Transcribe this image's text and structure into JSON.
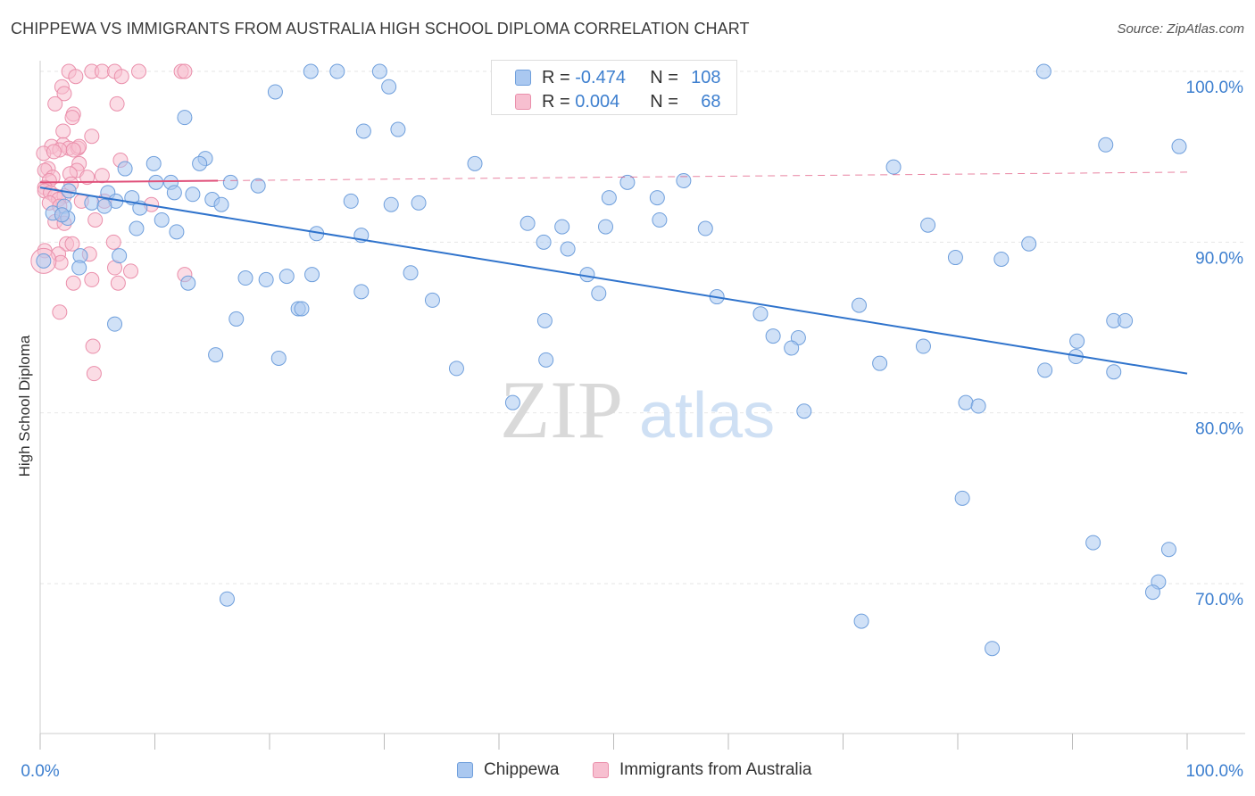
{
  "title": "CHIPPEWA VS IMMIGRANTS FROM AUSTRALIA HIGH SCHOOL DIPLOMA CORRELATION CHART",
  "source": "Source: ZipAtlas.com",
  "watermark": {
    "zip": "ZIP",
    "atlas": "atlas"
  },
  "legend": {
    "rows": [
      {
        "r_label": "R =",
        "r_value": "-0.474",
        "n_label": "N =",
        "n_value": "108"
      },
      {
        "r_label": "R =",
        "r_value": "0.004",
        "n_label": "N =",
        "n_value": "68"
      }
    ]
  },
  "chart_data": {
    "type": "scatter",
    "title": "CHIPPEWA VS IMMIGRANTS FROM AUSTRALIA HIGH SCHOOL DIPLOMA CORRELATION CHART",
    "xlabel": "",
    "ylabel": "High School Diploma",
    "xlim": [
      0,
      100
    ],
    "ylim": [
      60,
      102
    ],
    "x_tick_labels": [
      "0.0%",
      "100.0%"
    ],
    "y_ticks": [
      70,
      80,
      90,
      100
    ],
    "y_tick_labels": [
      "70.0%",
      "80.0%",
      "90.0%",
      "100.0%"
    ],
    "grid": true,
    "legend_position": "top-center",
    "colors": {
      "chippewa_fill": "#aac8f0",
      "chippewa_stroke": "#6f9fdc",
      "chippewa_line": "#2f73cc",
      "australia_fill": "#f7bfd0",
      "australia_stroke": "#ea8fab",
      "australia_line": "#e0507a",
      "tick_label": "#3d7fcf"
    },
    "series": [
      {
        "name": "Chippewa",
        "trend": {
          "x": [
            0,
            100
          ],
          "y": [
            93.2,
            82.3
          ]
        },
        "points": [
          [
            23.6,
            100
          ],
          [
            25.9,
            100
          ],
          [
            29.6,
            100
          ],
          [
            87.5,
            100
          ],
          [
            20.5,
            98.8
          ],
          [
            30.4,
            99.1
          ],
          [
            12.6,
            97.3
          ],
          [
            28.2,
            96.5
          ],
          [
            31.2,
            96.6
          ],
          [
            92.9,
            95.7
          ],
          [
            99.3,
            95.6
          ],
          [
            14.4,
            94.9
          ],
          [
            9.9,
            94.6
          ],
          [
            13.9,
            94.6
          ],
          [
            37.9,
            94.6
          ],
          [
            74.4,
            94.4
          ],
          [
            7.4,
            94.3
          ],
          [
            10.1,
            93.5
          ],
          [
            11.4,
            93.5
          ],
          [
            16.6,
            93.5
          ],
          [
            19.0,
            93.3
          ],
          [
            51.2,
            93.5
          ],
          [
            56.1,
            93.6
          ],
          [
            2.5,
            93.0
          ],
          [
            5.9,
            92.9
          ],
          [
            11.7,
            92.9
          ],
          [
            13.3,
            92.8
          ],
          [
            8.0,
            92.6
          ],
          [
            15.0,
            92.5
          ],
          [
            27.1,
            92.4
          ],
          [
            30.6,
            92.2
          ],
          [
            33.0,
            92.3
          ],
          [
            49.6,
            92.6
          ],
          [
            53.8,
            92.6
          ],
          [
            6.6,
            92.4
          ],
          [
            4.5,
            92.3
          ],
          [
            5.6,
            92.1
          ],
          [
            15.8,
            92.2
          ],
          [
            2.1,
            92.1
          ],
          [
            8.7,
            92.0
          ],
          [
            1.1,
            91.7
          ],
          [
            2.4,
            91.4
          ],
          [
            1.9,
            91.6
          ],
          [
            10.6,
            91.3
          ],
          [
            42.5,
            91.1
          ],
          [
            45.5,
            90.9
          ],
          [
            49.3,
            90.9
          ],
          [
            54.0,
            91.3
          ],
          [
            58.0,
            90.8
          ],
          [
            77.4,
            91.0
          ],
          [
            8.4,
            90.8
          ],
          [
            11.9,
            90.6
          ],
          [
            24.1,
            90.5
          ],
          [
            28.0,
            90.4
          ],
          [
            43.9,
            90.0
          ],
          [
            86.2,
            89.9
          ],
          [
            46.0,
            89.6
          ],
          [
            3.5,
            89.2
          ],
          [
            6.9,
            89.2
          ],
          [
            79.8,
            89.1
          ],
          [
            83.8,
            89.0
          ],
          [
            0.3,
            88.9
          ],
          [
            3.4,
            88.5
          ],
          [
            21.5,
            88.0
          ],
          [
            23.7,
            88.1
          ],
          [
            32.3,
            88.2
          ],
          [
            47.7,
            88.1
          ],
          [
            17.9,
            87.9
          ],
          [
            19.7,
            87.8
          ],
          [
            12.9,
            87.6
          ],
          [
            28.0,
            87.1
          ],
          [
            48.7,
            87.0
          ],
          [
            34.2,
            86.6
          ],
          [
            59.0,
            86.8
          ],
          [
            71.4,
            86.3
          ],
          [
            22.5,
            86.1
          ],
          [
            22.8,
            86.1
          ],
          [
            62.8,
            85.8
          ],
          [
            93.6,
            85.4
          ],
          [
            94.6,
            85.4
          ],
          [
            17.1,
            85.5
          ],
          [
            44.0,
            85.4
          ],
          [
            6.5,
            85.2
          ],
          [
            63.9,
            84.5
          ],
          [
            66.1,
            84.4
          ],
          [
            90.4,
            84.2
          ],
          [
            65.5,
            83.8
          ],
          [
            77.0,
            83.9
          ],
          [
            90.3,
            83.3
          ],
          [
            15.3,
            83.4
          ],
          [
            20.8,
            83.2
          ],
          [
            44.1,
            83.1
          ],
          [
            73.2,
            82.9
          ],
          [
            36.3,
            82.6
          ],
          [
            87.6,
            82.5
          ],
          [
            93.6,
            82.4
          ],
          [
            41.2,
            80.6
          ],
          [
            80.7,
            80.6
          ],
          [
            81.8,
            80.4
          ],
          [
            66.6,
            80.1
          ],
          [
            80.4,
            75.0
          ],
          [
            91.8,
            72.4
          ],
          [
            98.4,
            72.0
          ],
          [
            97.5,
            70.1
          ],
          [
            97.0,
            69.5
          ],
          [
            16.3,
            69.1
          ],
          [
            71.6,
            67.8
          ],
          [
            83.0,
            66.2
          ]
        ]
      },
      {
        "name": "Immigrants from Australia",
        "trend": {
          "x": [
            0,
            15.5
          ],
          "y": [
            93.5,
            93.6
          ]
        },
        "trend_extension": {
          "x": [
            15.5,
            100
          ],
          "y": [
            93.6,
            94.1
          ]
        },
        "points": [
          [
            2.5,
            100
          ],
          [
            4.5,
            100
          ],
          [
            3.1,
            99.7
          ],
          [
            5.4,
            100
          ],
          [
            6.5,
            100
          ],
          [
            7.1,
            99.7
          ],
          [
            8.6,
            100
          ],
          [
            12.3,
            100
          ],
          [
            12.6,
            100
          ],
          [
            1.9,
            99.1
          ],
          [
            2.1,
            98.7
          ],
          [
            1.3,
            98.1
          ],
          [
            6.7,
            98.1
          ],
          [
            2.9,
            97.5
          ],
          [
            2.8,
            97.3
          ],
          [
            2.0,
            96.5
          ],
          [
            4.5,
            96.2
          ],
          [
            2.0,
            95.7
          ],
          [
            2.5,
            95.5
          ],
          [
            3.3,
            95.5
          ],
          [
            3.4,
            95.6
          ],
          [
            1.0,
            95.6
          ],
          [
            1.7,
            95.4
          ],
          [
            0.3,
            95.2
          ],
          [
            1.2,
            95.3
          ],
          [
            2.9,
            95.4
          ],
          [
            7.0,
            94.8
          ],
          [
            3.4,
            94.6
          ],
          [
            0.7,
            94.3
          ],
          [
            3.2,
            94.2
          ],
          [
            0.4,
            94.2
          ],
          [
            2.6,
            94.0
          ],
          [
            1.1,
            93.8
          ],
          [
            2.7,
            93.4
          ],
          [
            4.1,
            93.8
          ],
          [
            5.4,
            93.9
          ],
          [
            0.8,
            93.6
          ],
          [
            0.4,
            93.2
          ],
          [
            0.4,
            93.0
          ],
          [
            0.9,
            92.9
          ],
          [
            1.3,
            92.7
          ],
          [
            2.1,
            92.7
          ],
          [
            1.6,
            92.5
          ],
          [
            3.6,
            92.4
          ],
          [
            0.8,
            92.3
          ],
          [
            1.7,
            92.1
          ],
          [
            5.6,
            92.4
          ],
          [
            9.7,
            92.2
          ],
          [
            1.9,
            91.6
          ],
          [
            1.3,
            91.2
          ],
          [
            2.1,
            91.1
          ],
          [
            4.8,
            91.3
          ],
          [
            6.4,
            90.0
          ],
          [
            2.3,
            89.9
          ],
          [
            2.8,
            89.9
          ],
          [
            0.4,
            89.5
          ],
          [
            1.6,
            89.3
          ],
          [
            4.3,
            89.3
          ],
          [
            1.8,
            88.8
          ],
          [
            6.5,
            88.5
          ],
          [
            7.9,
            88.3
          ],
          [
            12.6,
            88.1
          ],
          [
            4.5,
            87.8
          ],
          [
            2.9,
            87.6
          ],
          [
            6.8,
            87.6
          ],
          [
            1.7,
            85.9
          ],
          [
            4.6,
            83.9
          ],
          [
            4.7,
            82.3
          ]
        ]
      }
    ]
  },
  "bottom_legend": [
    {
      "label": "Chippewa"
    },
    {
      "label": "Immigrants from Australia"
    }
  ]
}
